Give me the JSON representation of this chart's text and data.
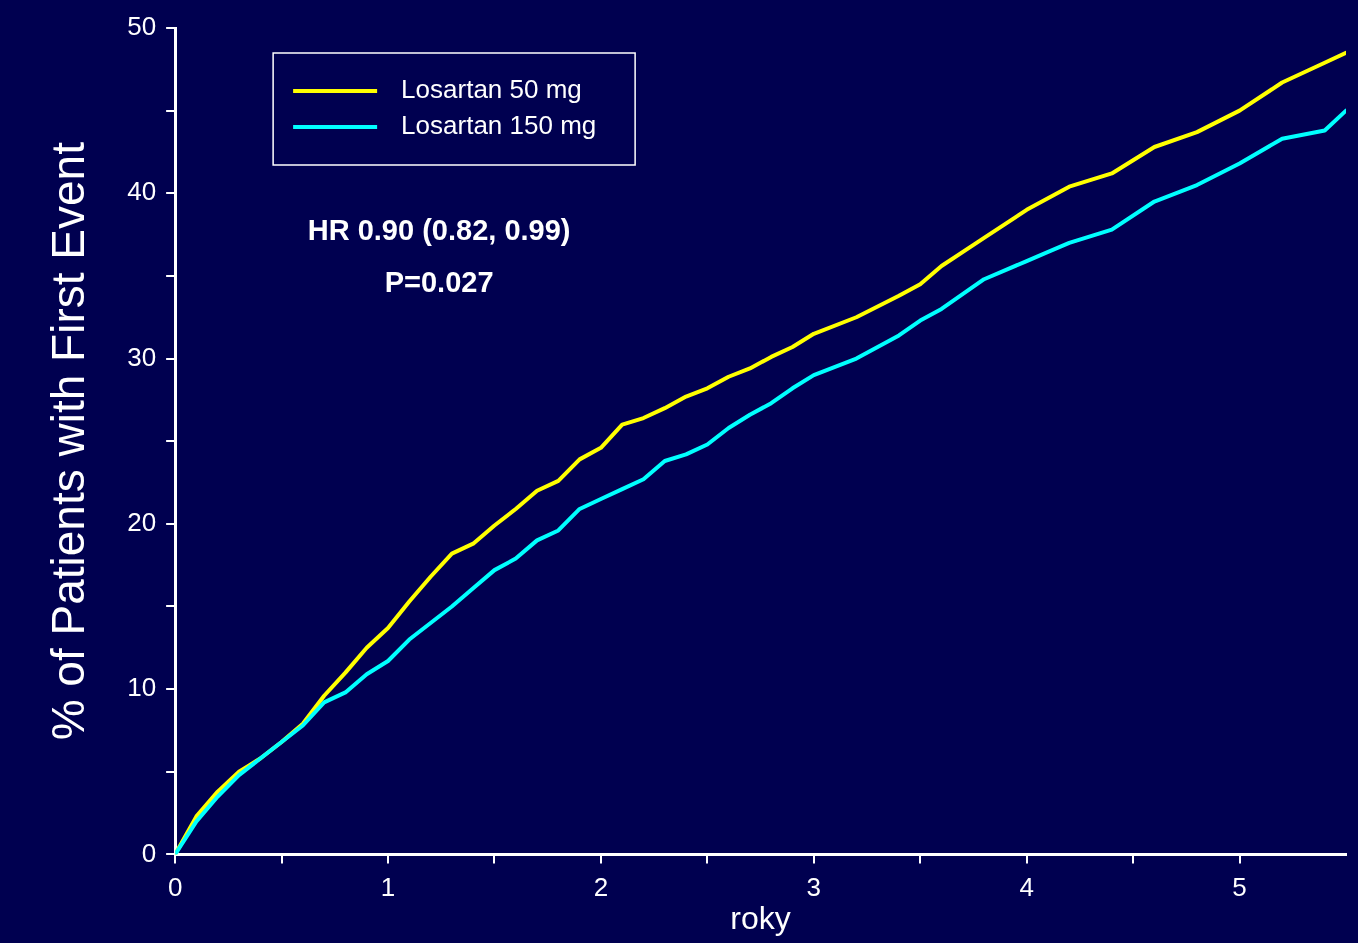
{
  "chart_data": {
    "type": "line",
    "xlabel": "roky",
    "ylabel": "% of Patients with First Event",
    "xlim": [
      0,
      5.5
    ],
    "xticks": [
      0,
      {
        "value": 0.5,
        "label": null
      },
      1,
      {
        "value": 1.5,
        "label": null
      },
      2,
      {
        "value": 2.5,
        "label": null
      },
      3,
      {
        "value": 3.5,
        "label": null
      },
      4,
      {
        "value": 4.5,
        "label": null
      },
      5
    ],
    "ylim": [
      0,
      50
    ],
    "yticks": [
      0,
      {
        "value": 5,
        "label": null
      },
      10,
      {
        "value": 15,
        "label": null
      },
      20,
      {
        "value": 25,
        "label": null
      },
      30,
      {
        "value": 35,
        "label": null
      },
      40,
      {
        "value": 45,
        "label": null
      },
      50
    ],
    "x": [
      0,
      0.1,
      0.2,
      0.3,
      0.4,
      0.5,
      0.6,
      0.7,
      0.8,
      0.9,
      1.0,
      1.1,
      1.2,
      1.3,
      1.4,
      1.5,
      1.6,
      1.7,
      1.8,
      1.9,
      2.0,
      2.1,
      2.2,
      2.3,
      2.4,
      2.5,
      2.6,
      2.7,
      2.8,
      2.9,
      3.0,
      3.2,
      3.4,
      3.5,
      3.6,
      3.8,
      4.0,
      4.2,
      4.4,
      4.6,
      4.8,
      5.0,
      5.2,
      5.4,
      5.5
    ],
    "series": [
      {
        "name": "Losartan 50 mg",
        "color": "#ffff00",
        "values": [
          0,
          2.3,
          3.8,
          5.0,
          5.8,
          6.8,
          7.9,
          9.6,
          11.0,
          12.5,
          13.7,
          15.3,
          16.8,
          18.2,
          18.8,
          19.9,
          20.9,
          22.0,
          22.6,
          23.9,
          24.6,
          26.0,
          26.4,
          27.0,
          27.7,
          28.2,
          28.9,
          29.4,
          30.1,
          30.7,
          31.5,
          32.5,
          33.8,
          34.5,
          35.6,
          37.3,
          39.0,
          40.4,
          41.2,
          42.8,
          43.7,
          45.0,
          46.7,
          47.9,
          48.5
        ]
      },
      {
        "name": "Losartan 150 mg",
        "color": "#00ffff",
        "values": [
          0,
          2.0,
          3.5,
          4.8,
          5.8,
          6.8,
          7.8,
          9.2,
          9.8,
          10.9,
          11.7,
          13.0,
          14.0,
          15.0,
          16.1,
          17.2,
          17.9,
          19.0,
          19.6,
          20.9,
          21.5,
          22.1,
          22.7,
          23.8,
          24.2,
          24.8,
          25.8,
          26.6,
          27.3,
          28.2,
          29.0,
          30.0,
          31.4,
          32.3,
          33.0,
          34.8,
          35.9,
          37.0,
          37.8,
          39.5,
          40.5,
          41.8,
          43.3,
          43.8,
          45.0
        ]
      }
    ],
    "annotations": [
      "HR 0.90 (0.82, 0.99)",
      "P=0.027"
    ],
    "legend": "top left",
    "marker": "none",
    "line_style": "solid",
    "grid": false
  }
}
